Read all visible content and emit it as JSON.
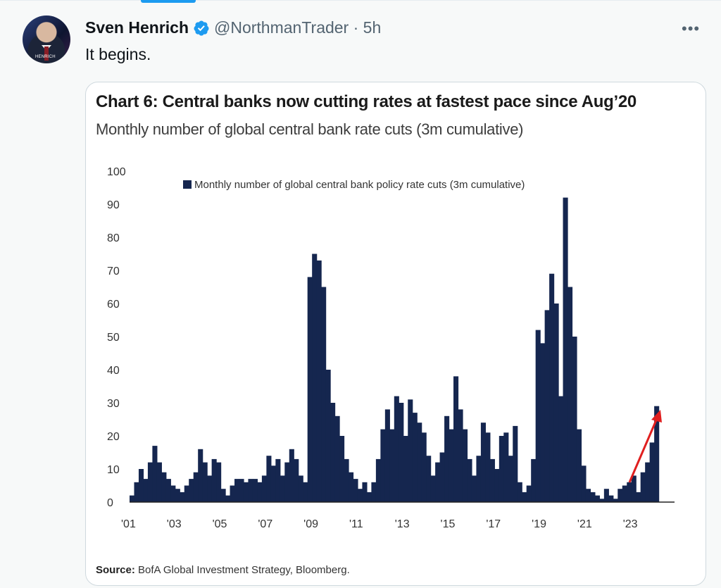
{
  "tweet": {
    "author_name": "Sven Henrich",
    "handle_time": "@NorthmanTrader · 5h",
    "text": "It begins.",
    "avatar_tag": "HENRICH",
    "more_label": "•••"
  },
  "colors": {
    "accent": "#1d9bf0",
    "bar": "#15264f",
    "arrow": "#e01f1f"
  },
  "chart_data": {
    "type": "bar",
    "title": "Chart 6: Central banks now cutting rates at fastest pace since Aug’20",
    "subtitle": "Monthly number of global central bank rate cuts (3m cumulative)",
    "source_label": "Source:",
    "source_text": "BofA Global Investment Strategy, Bloomberg.",
    "series": [
      {
        "name": "Monthly number of global central bank policy rate cuts (3m cumulative)",
        "points": [
          [
            2001.0,
            2
          ],
          [
            2001.2,
            6
          ],
          [
            2001.4,
            10
          ],
          [
            2001.6,
            7
          ],
          [
            2001.8,
            12
          ],
          [
            2002.0,
            17
          ],
          [
            2002.2,
            12
          ],
          [
            2002.4,
            9
          ],
          [
            2002.6,
            7
          ],
          [
            2002.8,
            5
          ],
          [
            2003.0,
            4
          ],
          [
            2003.2,
            3
          ],
          [
            2003.4,
            5
          ],
          [
            2003.6,
            7
          ],
          [
            2003.8,
            9
          ],
          [
            2004.0,
            16
          ],
          [
            2004.2,
            12
          ],
          [
            2004.4,
            8
          ],
          [
            2004.6,
            13
          ],
          [
            2004.8,
            12
          ],
          [
            2005.0,
            4
          ],
          [
            2005.2,
            2
          ],
          [
            2005.4,
            5
          ],
          [
            2005.6,
            7
          ],
          [
            2005.8,
            7
          ],
          [
            2006.0,
            6
          ],
          [
            2006.2,
            7
          ],
          [
            2006.4,
            7
          ],
          [
            2006.6,
            6
          ],
          [
            2006.8,
            8
          ],
          [
            2007.0,
            14
          ],
          [
            2007.2,
            11
          ],
          [
            2007.4,
            13
          ],
          [
            2007.6,
            8
          ],
          [
            2007.8,
            12
          ],
          [
            2008.0,
            16
          ],
          [
            2008.2,
            13
          ],
          [
            2008.4,
            8
          ],
          [
            2008.6,
            6
          ],
          [
            2008.8,
            68
          ],
          [
            2009.0,
            75
          ],
          [
            2009.2,
            73
          ],
          [
            2009.4,
            65
          ],
          [
            2009.6,
            40
          ],
          [
            2009.8,
            30
          ],
          [
            2010.0,
            26
          ],
          [
            2010.2,
            20
          ],
          [
            2010.4,
            13
          ],
          [
            2010.6,
            9
          ],
          [
            2010.8,
            7
          ],
          [
            2011.0,
            4
          ],
          [
            2011.2,
            6
          ],
          [
            2011.4,
            3
          ],
          [
            2011.6,
            6
          ],
          [
            2011.8,
            13
          ],
          [
            2012.0,
            22
          ],
          [
            2012.2,
            28
          ],
          [
            2012.4,
            22
          ],
          [
            2012.6,
            32
          ],
          [
            2012.8,
            30
          ],
          [
            2013.0,
            20
          ],
          [
            2013.2,
            31
          ],
          [
            2013.4,
            27
          ],
          [
            2013.6,
            24
          ],
          [
            2013.8,
            21
          ],
          [
            2014.0,
            14
          ],
          [
            2014.2,
            8
          ],
          [
            2014.4,
            12
          ],
          [
            2014.6,
            15
          ],
          [
            2014.8,
            26
          ],
          [
            2015.0,
            22
          ],
          [
            2015.2,
            38
          ],
          [
            2015.4,
            28
          ],
          [
            2015.6,
            22
          ],
          [
            2015.8,
            13
          ],
          [
            2016.0,
            8
          ],
          [
            2016.2,
            14
          ],
          [
            2016.4,
            24
          ],
          [
            2016.6,
            21
          ],
          [
            2016.8,
            13
          ],
          [
            2017.0,
            10
          ],
          [
            2017.2,
            20
          ],
          [
            2017.4,
            21
          ],
          [
            2017.6,
            14
          ],
          [
            2017.8,
            23
          ],
          [
            2018.0,
            6
          ],
          [
            2018.2,
            3
          ],
          [
            2018.4,
            5
          ],
          [
            2018.6,
            13
          ],
          [
            2018.8,
            52
          ],
          [
            2019.0,
            48
          ],
          [
            2019.2,
            58
          ],
          [
            2019.4,
            69
          ],
          [
            2019.6,
            60
          ],
          [
            2019.8,
            32
          ],
          [
            2020.0,
            92
          ],
          [
            2020.2,
            65
          ],
          [
            2020.4,
            50
          ],
          [
            2020.6,
            22
          ],
          [
            2020.8,
            11
          ],
          [
            2021.0,
            4
          ],
          [
            2021.2,
            3
          ],
          [
            2021.4,
            2
          ],
          [
            2021.6,
            1
          ],
          [
            2021.8,
            4
          ],
          [
            2022.0,
            2
          ],
          [
            2022.2,
            1
          ],
          [
            2022.4,
            4
          ],
          [
            2022.6,
            5
          ],
          [
            2022.8,
            6
          ],
          [
            2023.0,
            8
          ],
          [
            2023.2,
            3
          ],
          [
            2023.4,
            9
          ],
          [
            2023.6,
            12
          ],
          [
            2023.8,
            18
          ],
          [
            2024.0,
            29
          ]
        ]
      }
    ],
    "x_ticks": [
      "'01",
      "'03",
      "'05",
      "'07",
      "'09",
      "'11",
      "'13",
      "'15",
      "'17",
      "'19",
      "'21",
      "'23"
    ],
    "y_ticks": [
      "100",
      "90",
      "80",
      "70",
      "60",
      "50",
      "40",
      "30",
      "20",
      "10",
      "0"
    ],
    "xlim": [
      2001,
      2025.2
    ],
    "ylim": [
      0,
      100
    ],
    "grid": false,
    "legend_position": "top",
    "annotation": "red arrow pointing up toward the latest bar"
  }
}
